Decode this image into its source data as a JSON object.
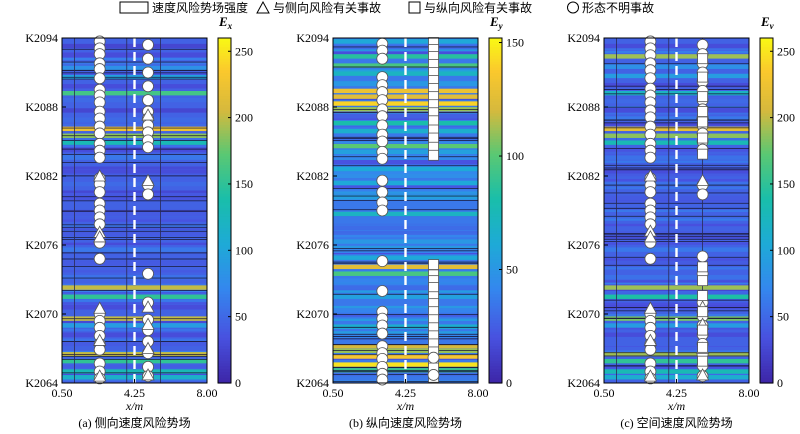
{
  "legend": {
    "field": "速度风险势场强度",
    "triangle": "与侧向风险有关事故",
    "square": "与纵向风险有关事故",
    "circle": "形态不明事故"
  },
  "chart_data": [
    {
      "type": "heatmap",
      "caption": "(a) 侧向速度风险势场",
      "colorbar_label": "E",
      "colorbar_sub": "x",
      "colorbar_ticks": [
        0,
        50,
        100,
        150,
        200,
        250
      ],
      "colorbar_range": [
        0,
        260
      ],
      "xlabel": "x/m",
      "xticks": [
        "0.50",
        "4.25",
        "8.00"
      ],
      "xlim": [
        0.5,
        8.0
      ],
      "yticks": [
        "K2064",
        "K2070",
        "K2076",
        "K2082",
        "K2088",
        "K2094"
      ],
      "ylim": [
        2064,
        2094
      ],
      "dashed_x": 4.25,
      "base_value": 45,
      "bands": [
        [
          2093.3,
          25
        ],
        [
          2092.5,
          30
        ],
        [
          2091.4,
          80
        ],
        [
          2090.6,
          95
        ],
        [
          2089.8,
          30
        ],
        [
          2089.2,
          160
        ],
        [
          2088.6,
          50
        ],
        [
          2087.7,
          25
        ],
        [
          2086.9,
          50
        ],
        [
          2086.1,
          225
        ],
        [
          2085.5,
          185
        ],
        [
          2084.9,
          130
        ],
        [
          2084.3,
          30
        ],
        [
          2083.6,
          60
        ],
        [
          2082.4,
          30
        ],
        [
          2081.3,
          50
        ],
        [
          2080.1,
          35
        ],
        [
          2078.7,
          40
        ],
        [
          2077.0,
          40
        ],
        [
          2075.6,
          60
        ],
        [
          2074.4,
          40
        ],
        [
          2073.2,
          55
        ],
        [
          2072.3,
          200
        ],
        [
          2071.5,
          150
        ],
        [
          2070.6,
          30
        ],
        [
          2069.6,
          200
        ],
        [
          2069.0,
          90
        ],
        [
          2068.2,
          30
        ],
        [
          2067.4,
          40
        ],
        [
          2066.5,
          200
        ],
        [
          2065.9,
          150
        ],
        [
          2065.0,
          130
        ],
        [
          2064.5,
          115
        ]
      ],
      "vlines": [
        1.15,
        3.85,
        5.6
      ],
      "markers": [
        {
          "shape": "circle",
          "x": 2.45,
          "y": [
            2093.7,
            2093.1,
            2092.6,
            2091.8,
            2091.3,
            2090.5,
            2089.5,
            2089.0,
            2088.4,
            2087.6,
            2087.0,
            2086.3,
            2085.7,
            2084.8,
            2084.2,
            2083.6,
            2081.8,
            2081.3,
            2080.6,
            2079.6,
            2079.0,
            2078.4,
            2077.8,
            2076.2,
            2074.8,
            2070.0,
            2069.4,
            2068.8,
            2068.1,
            2067.4,
            2066.9,
            2065.7,
            2065.0,
            2064.4
          ]
        },
        {
          "shape": "triangle",
          "x": 2.45,
          "y": [
            2082.0,
            2077.1,
            2076.7,
            2070.5,
            2067.7,
            2064.6
          ]
        },
        {
          "shape": "circle",
          "x": 4.95,
          "y": [
            2093.4,
            2092.2,
            2091.0,
            2089.8,
            2088.6,
            2087.6,
            2087.0,
            2086.4,
            2085.8,
            2085.1,
            2084.5,
            2081.2,
            2080.4,
            2073.5,
            2071.0,
            2069.5,
            2068.6,
            2067.6,
            2066.6,
            2065.4,
            2064.6
          ]
        },
        {
          "shape": "triangle",
          "x": 4.95,
          "y": [
            2087.3,
            2081.6,
            2070.6,
            2069.1,
            2067.0,
            2064.7
          ]
        }
      ]
    },
    {
      "type": "heatmap",
      "caption": "(b) 纵向速度风险势场",
      "colorbar_label": "E",
      "colorbar_sub": "y",
      "colorbar_ticks": [
        0,
        50,
        100,
        150
      ],
      "colorbar_range": [
        0,
        152
      ],
      "xlabel": "x/m",
      "xticks": [
        "0.50",
        "4.25",
        "8.00"
      ],
      "xlim": [
        0.5,
        8.0
      ],
      "yticks": [
        "K2064",
        "K2070",
        "K2076",
        "K2082",
        "K2088",
        "K2094"
      ],
      "ylim": [
        2064,
        2094
      ],
      "dashed_x": 4.25,
      "base_value": 35,
      "bands": [
        [
          2093.7,
          60
        ],
        [
          2093.2,
          30
        ],
        [
          2092.4,
          85
        ],
        [
          2091.6,
          95
        ],
        [
          2090.9,
          70
        ],
        [
          2090.0,
          50
        ],
        [
          2089.4,
          130
        ],
        [
          2088.9,
          125
        ],
        [
          2088.3,
          140
        ],
        [
          2087.8,
          110
        ],
        [
          2087.2,
          25
        ],
        [
          2086.6,
          80
        ],
        [
          2085.9,
          65
        ],
        [
          2085.2,
          30
        ],
        [
          2084.6,
          100
        ],
        [
          2084.1,
          55
        ],
        [
          2083.7,
          40
        ],
        [
          2083.2,
          20
        ],
        [
          2082.6,
          60
        ],
        [
          2082.0,
          45
        ],
        [
          2081.4,
          60
        ],
        [
          2080.2,
          55
        ],
        [
          2078.7,
          70
        ],
        [
          2077.5,
          30
        ],
        [
          2076.3,
          50
        ],
        [
          2075.5,
          40
        ],
        [
          2074.9,
          60
        ],
        [
          2074.1,
          125
        ],
        [
          2073.5,
          95
        ],
        [
          2072.9,
          40
        ],
        [
          2072.3,
          30
        ],
        [
          2071.5,
          55
        ],
        [
          2070.3,
          40
        ],
        [
          2068.9,
          65
        ],
        [
          2068.1,
          40
        ],
        [
          2067.2,
          120
        ],
        [
          2066.8,
          110
        ],
        [
          2066.3,
          135
        ],
        [
          2065.6,
          145
        ],
        [
          2065.1,
          90
        ],
        [
          2064.4,
          35
        ]
      ],
      "vlines": [],
      "markers": [
        {
          "shape": "circle",
          "x": 3.05,
          "y": [
            2093.5,
            2092.9,
            2092.2,
            2090.6,
            2089.9,
            2089.3,
            2088.6,
            2087.8,
            2087.2,
            2086.4,
            2085.6,
            2085.0,
            2084.1,
            2083.5,
            2081.6,
            2080.6,
            2079.7,
            2079.0,
            2074.6,
            2072.0,
            2070.2,
            2069.6,
            2069.0,
            2068.3,
            2067.2,
            2066.6,
            2066.1,
            2065.4,
            2064.8,
            2064.3
          ]
        },
        {
          "shape": "square",
          "x": 5.7,
          "y": [
            2093.6,
            2093.0,
            2092.4,
            2091.7,
            2091.0,
            2090.3,
            2089.6,
            2088.9,
            2088.2,
            2087.5,
            2086.8,
            2086.0,
            2085.3,
            2084.5,
            2083.8,
            2074.3,
            2073.4,
            2072.9,
            2072.3,
            2071.5,
            2070.9,
            2070.2,
            2069.5,
            2068.8,
            2068.1,
            2067.4,
            2066.7,
            2066.0,
            2065.3,
            2064.5
          ]
        },
        {
          "shape": "circle",
          "x": 5.7,
          "y": [
            2066.2,
            2064.7
          ]
        }
      ]
    },
    {
      "type": "heatmap",
      "caption": "(c) 空间速度风险势场",
      "colorbar_label": "E",
      "colorbar_sub": "v",
      "colorbar_ticks": [
        0,
        50,
        100,
        150,
        200,
        250
      ],
      "colorbar_range": [
        0,
        260
      ],
      "xlabel": "x/m",
      "xticks": [
        "0.50",
        "4.25",
        "8.00"
      ],
      "xlim": [
        0.5,
        8.0
      ],
      "yticks": [
        "K2064",
        "K2070",
        "K2076",
        "K2082",
        "K2088",
        "K2094"
      ],
      "ylim": [
        2064,
        2094
      ],
      "dashed_x": 4.25,
      "base_value": 45,
      "bands": [
        [
          2093.3,
          30
        ],
        [
          2092.4,
          190
        ],
        [
          2091.5,
          80
        ],
        [
          2090.7,
          90
        ],
        [
          2089.9,
          30
        ],
        [
          2089.2,
          120
        ],
        [
          2088.5,
          50
        ],
        [
          2087.7,
          30
        ],
        [
          2087.0,
          60
        ],
        [
          2086.1,
          215
        ],
        [
          2085.5,
          185
        ],
        [
          2084.9,
          130
        ],
        [
          2084.3,
          35
        ],
        [
          2083.6,
          55
        ],
        [
          2082.4,
          30
        ],
        [
          2081.3,
          55
        ],
        [
          2080.1,
          40
        ],
        [
          2078.7,
          45
        ],
        [
          2077.0,
          40
        ],
        [
          2075.6,
          60
        ],
        [
          2074.4,
          40
        ],
        [
          2073.2,
          55
        ],
        [
          2072.3,
          190
        ],
        [
          2071.5,
          140
        ],
        [
          2070.6,
          30
        ],
        [
          2069.6,
          180
        ],
        [
          2069.0,
          90
        ],
        [
          2068.2,
          30
        ],
        [
          2067.4,
          45
        ],
        [
          2066.5,
          190
        ],
        [
          2065.9,
          150
        ],
        [
          2065.0,
          130
        ],
        [
          2064.5,
          110
        ]
      ],
      "vlines": [
        1.15,
        3.85,
        5.6
      ],
      "markers": [
        {
          "shape": "circle",
          "x": 2.9,
          "y": [
            2093.7,
            2093.1,
            2092.5,
            2091.8,
            2091.2,
            2090.5,
            2089.6,
            2089.0,
            2088.4,
            2087.7,
            2087.1,
            2086.3,
            2085.6,
            2084.8,
            2084.2,
            2083.6,
            2081.8,
            2081.2,
            2080.6,
            2079.6,
            2079.0,
            2078.4,
            2077.8,
            2076.2,
            2074.8,
            2070.0,
            2069.4,
            2068.8,
            2068.1,
            2067.4,
            2066.9,
            2065.7,
            2065.0,
            2064.4
          ]
        },
        {
          "shape": "triangle",
          "x": 2.9,
          "y": [
            2082.0,
            2077.2,
            2076.7,
            2070.5,
            2067.7,
            2064.6
          ]
        },
        {
          "shape": "circle",
          "x": 5.6,
          "y": [
            2093.4,
            2092.6,
            2091.8,
            2091.0,
            2090.2,
            2089.4,
            2088.6,
            2087.8,
            2087.1,
            2086.4,
            2085.7,
            2085.0,
            2084.3,
            2081.2,
            2080.4,
            2075.0,
            2073.5,
            2071.0,
            2069.8,
            2069.0,
            2068.2,
            2067.4,
            2066.5,
            2065.5,
            2064.6
          ]
        },
        {
          "shape": "triangle",
          "x": 5.6,
          "y": [
            2087.4,
            2081.6,
            2070.6,
            2069.1,
            2067.0,
            2064.7
          ]
        },
        {
          "shape": "square",
          "x": 5.6,
          "y": [
            2092.2,
            2090.6,
            2088.9,
            2087.6,
            2086.7,
            2085.3,
            2083.9,
            2074.1,
            2072.9,
            2071.6,
            2070.2,
            2068.6,
            2067.1,
            2065.9
          ]
        }
      ]
    }
  ]
}
